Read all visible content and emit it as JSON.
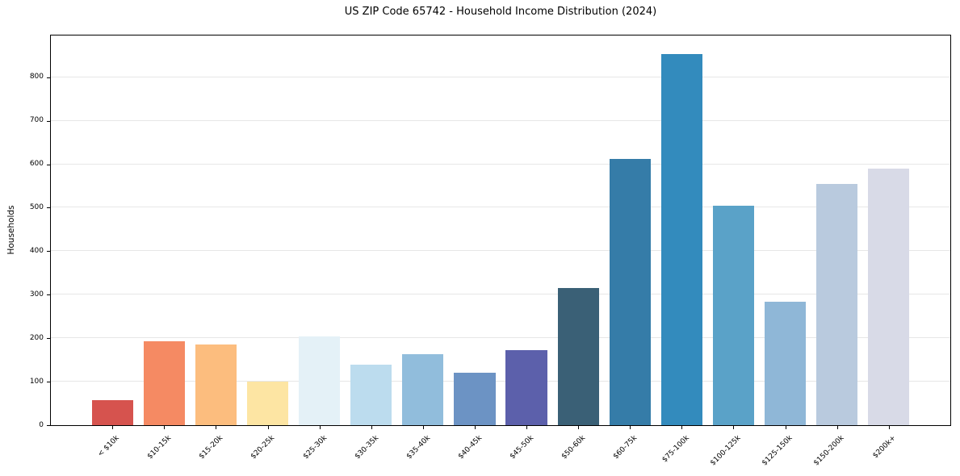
{
  "chart_data": {
    "type": "bar",
    "title": "US ZIP Code 65742 - Household Income Distribution (2024)",
    "xlabel": "",
    "ylabel": "Households",
    "categories": [
      "< $10k",
      "$10-15k",
      "$15-20k",
      "$20-25k",
      "$25-30k",
      "$30-35k",
      "$35-40k",
      "$40-45k",
      "$45-50k",
      "$50-60k",
      "$60-75k",
      "$75-100k",
      "$100-125k",
      "$125-150k",
      "$150-200k",
      "$200k+"
    ],
    "values": [
      58,
      193,
      186,
      101,
      205,
      139,
      164,
      120,
      172,
      315,
      612,
      853,
      504,
      284,
      555,
      590
    ],
    "bar_colors": [
      "#d6534e",
      "#f58a63",
      "#fcbd7e",
      "#fde5a3",
      "#e4f1f7",
      "#bcdcee",
      "#91bddc",
      "#6c93c4",
      "#5c60ab",
      "#3a6076",
      "#357ca8",
      "#338bbd",
      "#5aa2c8",
      "#8fb7d7",
      "#b9cade",
      "#d8dae7"
    ],
    "yticks": [
      0,
      100,
      200,
      300,
      400,
      500,
      600,
      700,
      800
    ],
    "ylim": [
      0,
      896
    ],
    "grid": true,
    "legend_position": "none",
    "x_tick_rotation_deg": 45,
    "bar_width_fraction": 0.8
  },
  "colors": {
    "background": "#ffffff",
    "gridline": "#e7e7e7",
    "spine": "#000000",
    "text": "#000000"
  }
}
